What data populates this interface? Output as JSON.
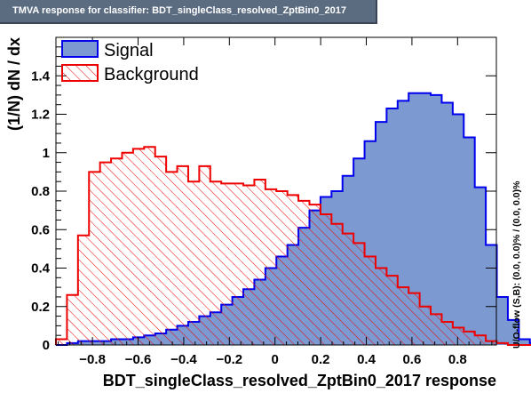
{
  "window": {
    "title": "TMVA response for classifier: BDT_singleClass_resolved_ZptBin0_2017"
  },
  "chart_data": {
    "type": "histogram",
    "xlabel": "BDT_singleClass_resolved_ZptBin0_2017 response",
    "ylabel": "(1/N) dN / dx",
    "side_note": "U/O-flow (S,B): (0.0, 0.0)% / (0.0, 0.0)%",
    "xlim": [
      -0.96,
      0.97
    ],
    "ylim": [
      0,
      1.6
    ],
    "x_ticks": [
      -0.8,
      -0.6,
      -0.4,
      -0.2,
      0,
      0.2,
      0.4,
      0.6,
      0.8
    ],
    "x_tick_labels": [
      "−0.8",
      "−0.6",
      "−0.4",
      "−0.2",
      "0",
      "0.2",
      "0.4",
      "0.6",
      "0.8"
    ],
    "y_ticks": [
      0,
      0.2,
      0.4,
      0.6,
      0.8,
      1,
      1.2,
      1.4
    ],
    "y_tick_labels": [
      "0",
      "0.2",
      "0.4",
      "0.6",
      "0.8",
      "1",
      "1.2",
      "1.4"
    ],
    "bin_start": -0.96,
    "bin_width": 0.0483,
    "legend_position": "top-left",
    "series": [
      {
        "name": "Signal",
        "color": "#0000ee",
        "fill": "#7d99d1",
        "values": [
          0.0,
          0.01,
          0.02,
          0.02,
          0.02,
          0.03,
          0.03,
          0.04,
          0.05,
          0.06,
          0.08,
          0.1,
          0.12,
          0.15,
          0.17,
          0.21,
          0.25,
          0.29,
          0.34,
          0.4,
          0.46,
          0.52,
          0.61,
          0.7,
          0.77,
          0.8,
          0.88,
          0.97,
          1.06,
          1.16,
          1.23,
          1.27,
          1.31,
          1.31,
          1.3,
          1.26,
          1.2,
          1.08,
          0.82,
          0.52,
          0.25,
          0.13,
          0.03,
          0.01
        ]
      },
      {
        "name": "Background",
        "color": "#ee0000",
        "fill": "hatched",
        "values": [
          0.03,
          0.26,
          0.57,
          0.9,
          0.95,
          0.97,
          1.0,
          1.02,
          1.03,
          0.98,
          0.9,
          0.93,
          0.85,
          0.93,
          0.85,
          0.84,
          0.84,
          0.83,
          0.86,
          0.81,
          0.8,
          0.78,
          0.75,
          0.73,
          0.68,
          0.63,
          0.58,
          0.53,
          0.46,
          0.4,
          0.36,
          0.3,
          0.27,
          0.2,
          0.16,
          0.12,
          0.09,
          0.07,
          0.05,
          0.02,
          0.01,
          0.0,
          0.0,
          0.0
        ]
      }
    ]
  }
}
